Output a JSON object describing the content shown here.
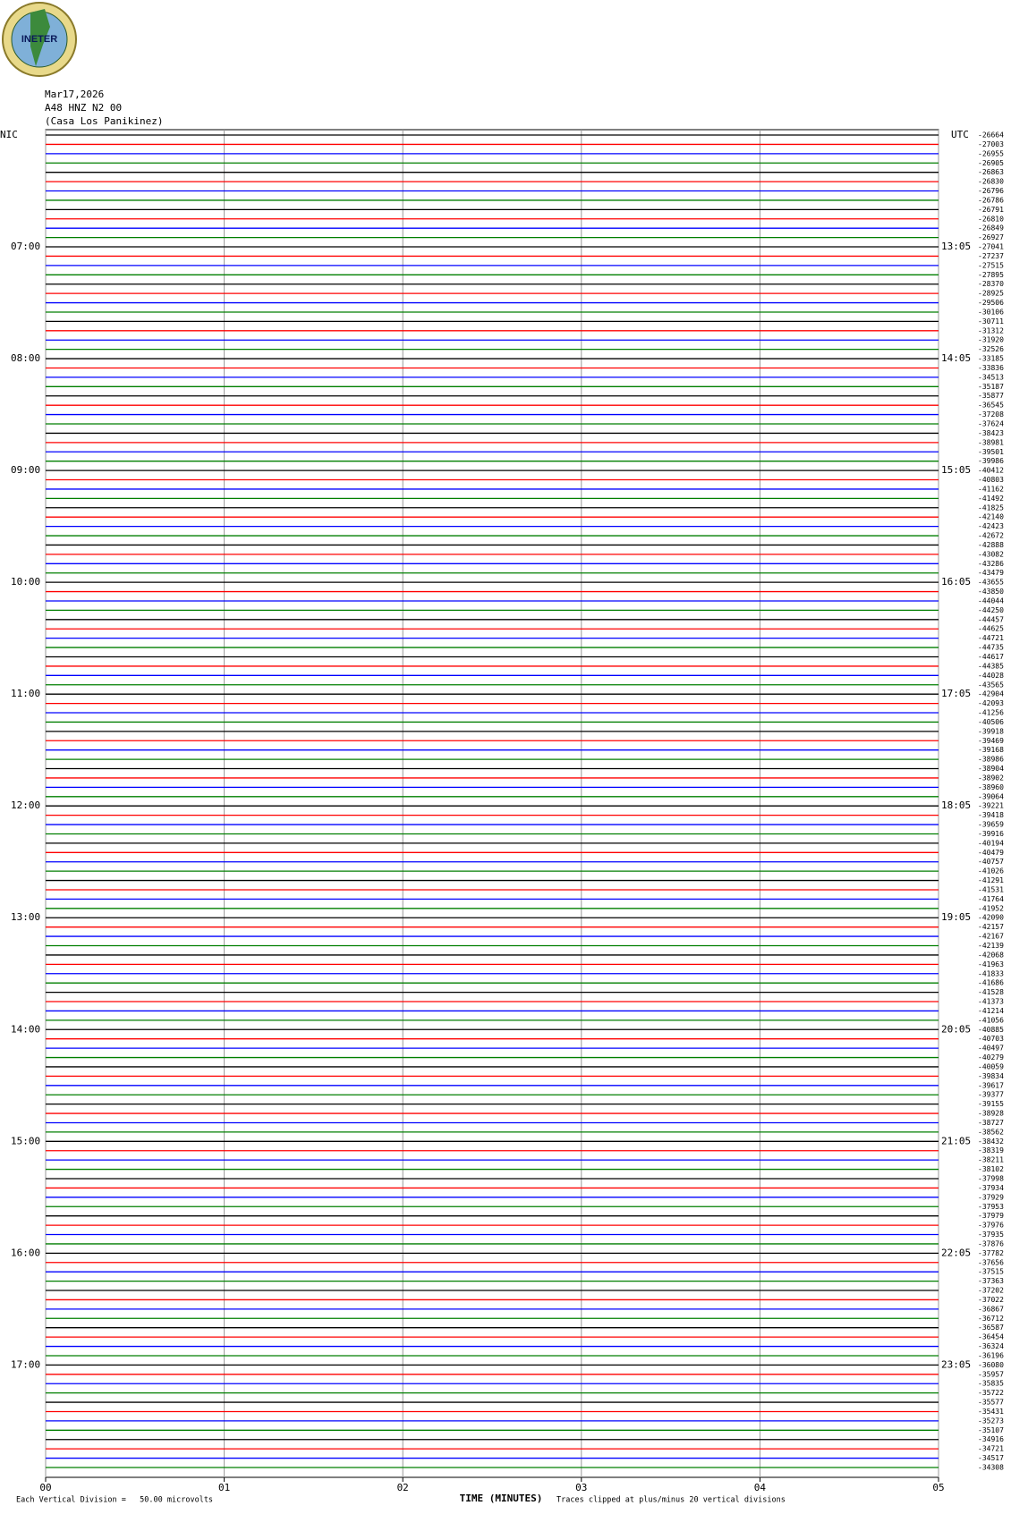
{
  "chart_data": {
    "type": "helicorder",
    "logo_text": "INETER",
    "title": "Mar17,2026",
    "subtitle": "A48 HNZ N2 00",
    "station": "(Casa Los Panikinez)",
    "left_axis_label": "NIC",
    "right_axis_label": "UTC",
    "left_hour_labels": [
      "07:00",
      "08:00",
      "09:00",
      "10:00",
      "11:00",
      "12:00",
      "13:00",
      "14:00",
      "15:00",
      "16:00",
      "17:00"
    ],
    "right_hour_labels": [
      "13:05",
      "14:05",
      "15:05",
      "16:05",
      "17:05",
      "18:05",
      "19:05",
      "20:05",
      "21:05",
      "22:05",
      "23:05"
    ],
    "trace_colors": [
      "#000000",
      "#ff0000",
      "#0000ff",
      "#007f00"
    ],
    "trace_offsets": [
      -26664,
      -27003,
      -26955,
      -26905,
      -26863,
      -26830,
      -26796,
      -26786,
      -26791,
      -26810,
      -26849,
      -26927,
      -27041,
      -27237,
      -27515,
      -27895,
      -28370,
      -28925,
      -29506,
      -30106,
      -30711,
      -31312,
      -31920,
      -32526,
      -33185,
      -33836,
      -34513,
      -35187,
      -35877,
      -36545,
      -37208,
      -37624,
      -38423,
      -38981,
      -39501,
      -39986,
      -40412,
      -40803,
      -41162,
      -41492,
      -41825,
      -42140,
      -42423,
      -42672,
      -42888,
      -43082,
      -43286,
      -43479,
      -43655,
      -43850,
      -44044,
      -44250,
      -44457,
      -44625,
      -44721,
      -44735,
      -44617,
      -44385,
      -44028,
      -43565,
      -42904,
      -42093,
      -41256,
      -40506,
      -39918,
      -39469,
      -39168,
      -38986,
      -38904,
      -38902,
      -38960,
      -39064,
      -39221,
      -39418,
      -39659,
      -39916,
      -40194,
      -40479,
      -40757,
      -41026,
      -41291,
      -41531,
      -41764,
      -41952,
      -42090,
      -42157,
      -42167,
      -42139,
      -42068,
      -41963,
      -41833,
      -41686,
      -41528,
      -41373,
      -41214,
      -41056,
      -40885,
      -40703,
      -40497,
      -40279,
      -40059,
      -39834,
      -39617,
      -39377,
      -39155,
      -38928,
      -38727,
      -38562,
      -38432,
      -38319,
      -38211,
      -38102,
      -37998,
      -37934,
      -37929,
      -37953,
      -37979,
      -37976,
      -37935,
      -37876,
      -37782,
      -37656,
      -37515,
      -37363,
      -37202,
      -37022,
      -36867,
      -36712,
      -36587,
      -36454,
      -36324,
      -36196,
      -36080,
      -35957,
      -35835,
      -35722,
      -35577,
      -35431,
      -35273,
      -35107,
      -34916,
      -34721,
      -34517,
      -34308
    ],
    "xlim": [
      0,
      5
    ],
    "xticks": [
      {
        "value": 0,
        "label": "00"
      },
      {
        "value": 1,
        "label": "01"
      },
      {
        "value": 2,
        "label": "02"
      },
      {
        "value": 3,
        "label": "03"
      },
      {
        "value": 4,
        "label": "04"
      },
      {
        "value": 5,
        "label": "05"
      }
    ],
    "xlabel": "TIME (MINUTES)",
    "scale_note": "Each Vertical Division =   50.00 microvolts",
    "clip_note": "Traces clipped at plus/minus 20 vertical divisions"
  }
}
